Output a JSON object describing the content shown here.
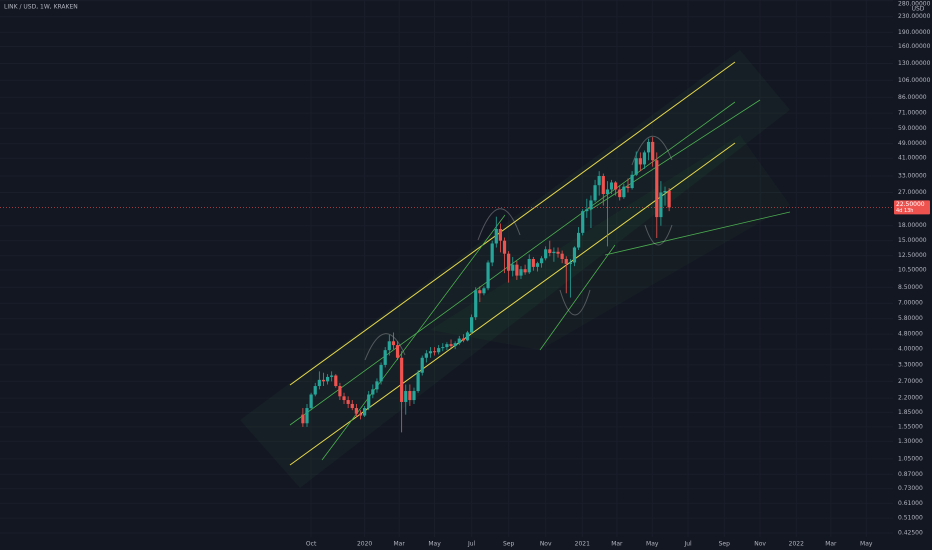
{
  "chart_data": {
    "type": "candlestick",
    "title": "LINK / USD, 1W, KRAKEN",
    "currency": "USD",
    "log_scale": true,
    "grid": true,
    "up_color": "#26a69a",
    "down_color": "#ef5350",
    "categories": [
      null,
      null,
      null,
      null,
      null,
      null,
      null,
      null,
      null,
      null,
      null,
      null,
      null,
      null,
      null,
      null,
      null,
      null,
      null,
      null,
      null,
      null,
      null,
      null,
      null,
      null,
      null,
      null,
      null,
      null,
      null,
      null,
      null,
      null,
      null,
      null,
      null,
      null,
      null,
      null,
      null,
      null,
      null,
      null,
      null,
      null,
      null,
      null,
      null,
      null,
      null,
      null,
      null,
      null,
      null,
      null,
      null,
      null,
      null,
      null,
      null,
      null,
      null,
      null,
      null,
      null,
      null,
      null,
      null,
      null,
      null,
      null,
      null,
      null,
      null,
      null,
      null,
      null,
      null,
      null,
      null,
      null,
      null,
      null,
      null,
      null,
      null,
      null,
      null,
      null
    ],
    "open": [
      1.8,
      1.62,
      1.95,
      2.3,
      2.55,
      2.75,
      2.7,
      2.85,
      2.9,
      2.55,
      2.25,
      2.15,
      2.05,
      1.95,
      1.82,
      1.78,
      1.95,
      2.3,
      2.45,
      2.7,
      3.3,
      3.95,
      4.4,
      4.2,
      3.6,
      2.1,
      2.4,
      2.15,
      2.4,
      3.0,
      3.6,
      3.8,
      3.9,
      3.85,
      4.05,
      4.1,
      4.25,
      4.15,
      4.3,
      4.55,
      4.45,
      4.9,
      5.9,
      8.2,
      7.9,
      8.4,
      11.5,
      14.5,
      17.3,
      15.0,
      12.8,
      10.4,
      11.2,
      9.8,
      10.6,
      10.2,
      12.0,
      10.9,
      11.4,
      12.1,
      13.5,
      12.9,
      13.1,
      12.8,
      12.0,
      11.3,
      11.5,
      13.8,
      16.5,
      21.5,
      22.0,
      24.5,
      29.5,
      33.0,
      26.5,
      28.0,
      30.5,
      28.0,
      25.5,
      29.0,
      28.5,
      33.5,
      41.0,
      38.0,
      44.0,
      50.0,
      40.0,
      20.0,
      27.0,
      27.5
    ],
    "high": [
      1.95,
      2.05,
      2.35,
      2.65,
      3.05,
      3.0,
      2.95,
      3.05,
      2.95,
      2.65,
      2.35,
      2.25,
      2.15,
      2.05,
      1.9,
      2.0,
      2.4,
      2.6,
      2.8,
      3.4,
      4.1,
      4.75,
      4.9,
      4.4,
      3.9,
      2.6,
      2.6,
      2.5,
      3.1,
      3.7,
      3.95,
      4.1,
      4.1,
      4.2,
      4.3,
      4.35,
      4.5,
      4.4,
      4.7,
      4.8,
      5.0,
      6.1,
      8.5,
      8.6,
      8.6,
      11.8,
      15.0,
      20.1,
      18.5,
      15.6,
      13.2,
      12.3,
      11.7,
      11.0,
      11.2,
      12.7,
      12.3,
      11.6,
      12.4,
      14.0,
      15.0,
      13.8,
      13.8,
      13.3,
      12.4,
      12.0,
      14.0,
      17.7,
      22.0,
      25.0,
      26.0,
      31.5,
      35.0,
      34.0,
      31.0,
      31.5,
      31.0,
      29.5,
      30.0,
      32.0,
      35.0,
      44.5,
      44.0,
      45.0,
      52.0,
      53.0,
      44.0,
      31.0,
      29.0,
      28.5
    ],
    "low": [
      1.55,
      1.55,
      1.9,
      2.25,
      2.45,
      2.55,
      2.6,
      2.7,
      2.5,
      2.15,
      2.05,
      1.95,
      1.9,
      1.75,
      1.7,
      1.75,
      1.9,
      2.2,
      2.35,
      2.6,
      3.2,
      3.7,
      4.0,
      3.5,
      1.45,
      1.8,
      2.0,
      2.05,
      2.35,
      2.9,
      3.4,
      3.6,
      3.7,
      3.75,
      3.9,
      3.95,
      4.05,
      4.0,
      4.2,
      4.35,
      4.4,
      4.8,
      5.7,
      7.1,
      7.7,
      8.2,
      11.0,
      13.8,
      13.0,
      10.1,
      9.0,
      9.7,
      9.3,
      9.4,
      9.9,
      10.0,
      10.4,
      10.3,
      10.8,
      11.8,
      12.4,
      11.6,
      12.2,
      11.4,
      7.9,
      7.5,
      11.0,
      13.4,
      16.0,
      19.8,
      17.5,
      24.0,
      26.0,
      23.0,
      14.0,
      26.5,
      26.0,
      24.5,
      25.0,
      27.0,
      28.0,
      33.0,
      35.0,
      36.0,
      40.0,
      37.0,
      15.5,
      18.0,
      23.0,
      21.5
    ],
    "close": [
      1.62,
      1.95,
      2.3,
      2.55,
      2.75,
      2.7,
      2.85,
      2.9,
      2.55,
      2.25,
      2.15,
      2.05,
      1.95,
      1.82,
      1.78,
      1.95,
      2.3,
      2.45,
      2.7,
      3.3,
      3.95,
      4.4,
      4.2,
      3.6,
      2.1,
      2.4,
      2.15,
      2.4,
      3.0,
      3.6,
      3.8,
      3.9,
      3.85,
      4.05,
      4.1,
      4.25,
      4.15,
      4.3,
      4.55,
      4.45,
      4.9,
      5.9,
      8.2,
      7.9,
      8.4,
      11.5,
      14.5,
      17.3,
      15.0,
      12.8,
      10.4,
      11.2,
      9.8,
      10.6,
      10.2,
      12.0,
      10.9,
      11.4,
      12.1,
      13.5,
      12.9,
      13.1,
      12.8,
      12.0,
      11.3,
      11.5,
      13.8,
      16.5,
      21.5,
      22.0,
      24.5,
      29.5,
      33.0,
      26.5,
      28.0,
      30.5,
      28.0,
      25.5,
      29.0,
      28.5,
      33.5,
      41.0,
      38.0,
      44.0,
      50.0,
      40.0,
      20.0,
      27.0,
      27.5,
      22.5
    ],
    "last_price": {
      "value": 22.5,
      "label": "22.50000"
    },
    "countdown": "4d 13h",
    "ylim": [
      0.405,
      282
    ],
    "yticks": [
      {
        "value": 280,
        "label": "280.00000"
      },
      {
        "value": 230,
        "label": "230.00000"
      },
      {
        "value": 190,
        "label": "190.00000"
      },
      {
        "value": 160,
        "label": "160.00000"
      },
      {
        "value": 130,
        "label": "130.00000"
      },
      {
        "value": 106,
        "label": "106.00000"
      },
      {
        "value": 86,
        "label": "86.00000"
      },
      {
        "value": 71,
        "label": "71.00000"
      },
      {
        "value": 59,
        "label": "59.00000"
      },
      {
        "value": 49,
        "label": "49.00000"
      },
      {
        "value": 41,
        "label": "41.00000"
      },
      {
        "value": 33,
        "label": "33.00000"
      },
      {
        "value": 27,
        "label": "27.00000"
      },
      {
        "value": 18,
        "label": "18.00000"
      },
      {
        "value": 15,
        "label": "15.00000"
      },
      {
        "value": 12.5,
        "label": "12.50000"
      },
      {
        "value": 10.5,
        "label": "10.50000"
      },
      {
        "value": 8.5,
        "label": "8.50000"
      },
      {
        "value": 7,
        "label": "7.00000"
      },
      {
        "value": 5.8,
        "label": "5.80000"
      },
      {
        "value": 4.8,
        "label": "4.80000"
      },
      {
        "value": 4,
        "label": "4.00000"
      },
      {
        "value": 3.3,
        "label": "3.30000"
      },
      {
        "value": 2.7,
        "label": "2.70000"
      },
      {
        "value": 2.2,
        "label": "2.20000"
      },
      {
        "value": 1.85,
        "label": "1.85000"
      },
      {
        "value": 1.55,
        "label": "1.55000"
      },
      {
        "value": 1.3,
        "label": "1.30000"
      },
      {
        "value": 1.05,
        "label": "1.05000"
      },
      {
        "value": 0.87,
        "label": "0.87000"
      },
      {
        "value": 0.73,
        "label": "0.73000"
      },
      {
        "value": 0.61,
        "label": "0.61000"
      },
      {
        "value": 0.51,
        "label": "0.51000"
      },
      {
        "value": 0.425,
        "label": "0.42500"
      }
    ],
    "xlim": [
      -73.6,
      143.4
    ],
    "xticks": [
      {
        "value": 2,
        "label": "Oct"
      },
      {
        "value": 15,
        "label": "2020"
      },
      {
        "value": 23.4,
        "label": "Mar"
      },
      {
        "value": 32,
        "label": "May"
      },
      {
        "value": 41,
        "label": "Jul"
      },
      {
        "value": 50,
        "label": "Sep"
      },
      {
        "value": 59,
        "label": "Nov"
      },
      {
        "value": 67.9,
        "label": "2021"
      },
      {
        "value": 76.3,
        "label": "Mar"
      },
      {
        "value": 84.9,
        "label": "May"
      },
      {
        "value": 93.6,
        "label": "Jul"
      },
      {
        "value": 102.4,
        "label": "Sep"
      },
      {
        "value": 111.1,
        "label": "Nov"
      },
      {
        "value": 119.9,
        "label": "2022"
      },
      {
        "value": 128.3,
        "label": "Mar"
      },
      {
        "value": 136.9,
        "label": "May"
      }
    ]
  }
}
